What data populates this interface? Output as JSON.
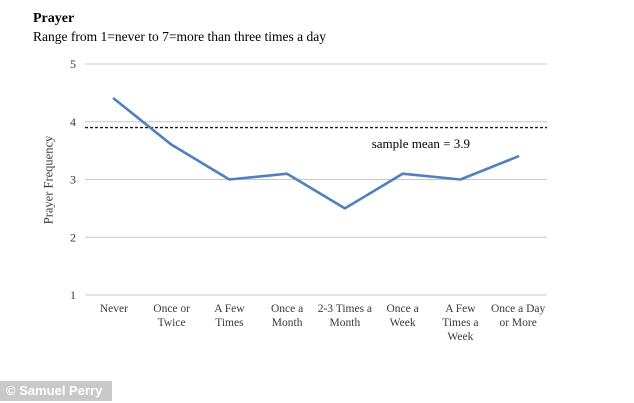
{
  "watermark": "© Samuel Perry",
  "chart_data": {
    "type": "line",
    "title": "Prayer",
    "subtitle": "Range from 1=never to 7=more than three times a day",
    "ylabel": "Prayer Frequency",
    "xlabel": "",
    "categories": [
      "Never",
      "Once or Twice",
      "A Few Times",
      "Once a Month",
      "2-3 Times a Month",
      "Once a Week",
      "A Few Times a Week",
      "Once a Day or More"
    ],
    "values": [
      4.4,
      3.6,
      3.0,
      3.1,
      2.5,
      3.1,
      3.0,
      3.4
    ],
    "ylim": [
      1,
      5
    ],
    "yticks": [
      1,
      2,
      3,
      4,
      5
    ],
    "grid": true,
    "legend": "none",
    "markers": false,
    "line_color": "#4F81BD",
    "gridline_color": "#C8C8C8",
    "reference_line": {
      "value": 3.9,
      "label": "sample mean = 3.9",
      "style": "dashed",
      "color": "#1A1A1A"
    }
  }
}
